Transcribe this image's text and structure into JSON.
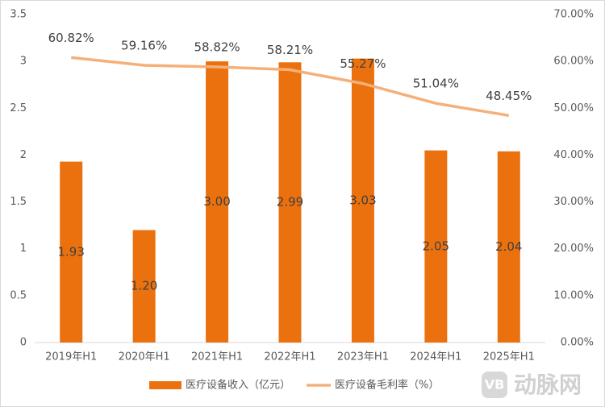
{
  "chart_data": {
    "type": "bar-line",
    "categories": [
      "2019年H1",
      "2020年H1",
      "2021年H1",
      "2022年H1",
      "2023年H1",
      "2024年H1",
      "2025年H1"
    ],
    "series": [
      {
        "name": "医疗设备收入（亿元）",
        "type": "bar",
        "color": "#eb710f",
        "values": [
          1.93,
          1.2,
          3.0,
          2.99,
          3.03,
          2.05,
          2.04
        ],
        "value_labels": [
          "1.93",
          "1.20",
          "3.00",
          "2.99",
          "3.03",
          "2.05",
          "2.04"
        ]
      },
      {
        "name": "医疗设备毛利率（%）",
        "type": "line",
        "axis": "y2",
        "color": "#f5b07a",
        "values": [
          60.82,
          59.16,
          58.82,
          58.21,
          55.27,
          51.04,
          48.45
        ],
        "value_labels": [
          "60.82%",
          "59.16%",
          "58.82%",
          "58.21%",
          "55.27%",
          "51.04%",
          "48.45%"
        ]
      }
    ],
    "ylim": [
      0,
      3.5
    ],
    "yticks": [
      0,
      0.5,
      1,
      1.5,
      2,
      2.5,
      3,
      3.5
    ],
    "y2lim": [
      0,
      70
    ],
    "y2ticks": [
      {
        "value": 0,
        "label": "0.00%"
      },
      {
        "value": 10,
        "label": "10.00%"
      },
      {
        "value": 20,
        "label": "20.00%"
      },
      {
        "value": 30,
        "label": "30.00%"
      },
      {
        "value": 40,
        "label": "40.00%"
      },
      {
        "value": 50,
        "label": "50.00%"
      },
      {
        "value": 60,
        "label": "60.00%"
      },
      {
        "value": 70,
        "label": "70.00%"
      }
    ],
    "grid": false,
    "legend": "bottom"
  },
  "watermark": {
    "logo": "VB",
    "text": "动脉网"
  }
}
